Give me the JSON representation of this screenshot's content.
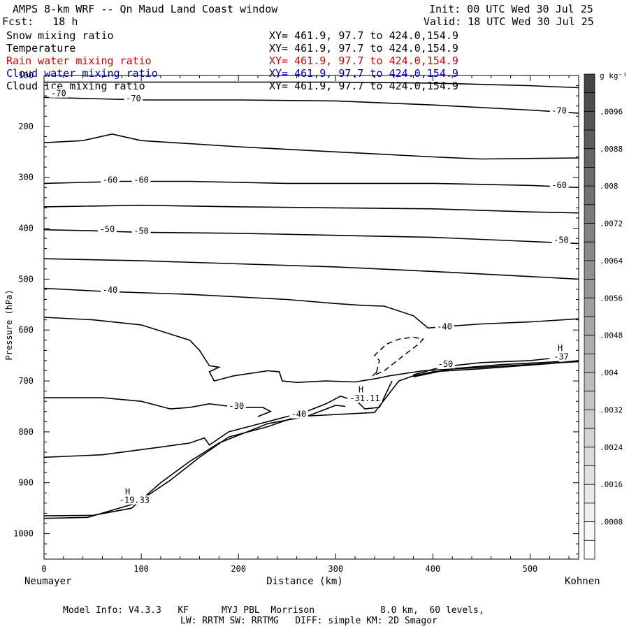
{
  "header": {
    "title": "AMPS 8-km WRF -- Qn Maud Land Coast window",
    "fcst": "Fcst:   18 h",
    "init": "Init: 00 UTC Wed 30 Jul 25",
    "valid": "Valid: 18 UTC Wed 30 Jul 25"
  },
  "fields": [
    {
      "name": "Snow mixing ratio",
      "xy": "XY= 461.9, 97.7 to 424.0,154.9",
      "color": "#000000"
    },
    {
      "name": "Temperature",
      "xy": "XY= 461.9, 97.7 to 424.0,154.9",
      "color": "#000000"
    },
    {
      "name": "Rain water mixing ratio",
      "xy": "XY= 461.9, 97.7 to 424.0,154.9",
      "color": "#e00000"
    },
    {
      "name": "Cloud water mixing ratio",
      "xy": "XY= 461.9, 97.7 to 424.0,154.9",
      "color": "#0000c8"
    },
    {
      "name": "Cloud ice mixing ratio",
      "xy": "XY= 461.9, 97.7 to 424.0,154.9",
      "color": "#000000"
    }
  ],
  "footer": {
    "line1": "Model Info: V4.3.3   KF      MYJ PBL  Morrison            8.0 km,  60 levels,",
    "line2": "LW: RRTM SW: RRTMG   DIFF: simple KM: 2D Smagor"
  },
  "chart_data": {
    "type": "line",
    "xlabel": "Distance (km)",
    "ylabel": "Pressure (hPa)",
    "xlim": [
      0,
      550
    ],
    "ylim": [
      1050,
      100
    ],
    "x_ticks": [
      0,
      100,
      200,
      300,
      400,
      500
    ],
    "y_ticks": [
      100,
      200,
      300,
      400,
      500,
      600,
      700,
      800,
      900,
      1000
    ],
    "left_endpoint_label": "Neumayer",
    "right_endpoint_label": "Kohnen",
    "colorbar": {
      "unit": "g kg⁻¹",
      "ticks": [
        ".0096",
        ".0088",
        ".008",
        ".0072",
        ".0064",
        ".0056",
        ".0048",
        ".004",
        ".0032",
        ".0024",
        ".0016",
        ".0008"
      ]
    },
    "contour_labels": [
      {
        "text": "-70",
        "x": 15,
        "p": 138
      },
      {
        "text": "-70",
        "x": 92,
        "p": 148
      },
      {
        "text": "-70",
        "x": 530,
        "p": 172
      },
      {
        "text": "-60",
        "x": 68,
        "p": 308
      },
      {
        "text": "-60",
        "x": 100,
        "p": 308
      },
      {
        "text": "-60",
        "x": 530,
        "p": 318
      },
      {
        "text": "-50",
        "x": 65,
        "p": 405
      },
      {
        "text": "-50",
        "x": 100,
        "p": 408
      },
      {
        "text": "-50",
        "x": 532,
        "p": 426
      },
      {
        "text": "-40",
        "x": 68,
        "p": 524
      },
      {
        "text": "-40",
        "x": 412,
        "p": 596
      },
      {
        "text": "-40",
        "x": 262,
        "p": 768
      },
      {
        "text": "-30",
        "x": 198,
        "p": 752
      },
      {
        "text": "-50",
        "x": 413,
        "p": 670
      },
      {
        "text": "H",
        "x": 86,
        "p": 920
      },
      {
        "text": "-19.33",
        "x": 93,
        "p": 937
      },
      {
        "text": "H",
        "x": 326,
        "p": 720
      },
      {
        "text": "-31.11",
        "x": 330,
        "p": 737
      },
      {
        "text": "H",
        "x": 531,
        "p": 638
      },
      {
        "text": "-37",
        "x": 532,
        "p": 655
      }
    ],
    "isotherms": [
      {
        "label": "-70",
        "points": [
          [
            0,
            113
          ],
          [
            100,
            113
          ],
          [
            200,
            113
          ],
          [
            300,
            113
          ],
          [
            400,
            115
          ],
          [
            500,
            120
          ],
          [
            550,
            124
          ]
        ]
      },
      {
        "label": "-70",
        "points": [
          [
            0,
            143
          ],
          [
            100,
            148
          ],
          [
            200,
            148
          ],
          [
            300,
            150
          ],
          [
            400,
            158
          ],
          [
            500,
            168
          ],
          [
            550,
            174
          ]
        ]
      },
      {
        "label": "",
        "points": [
          [
            0,
            232
          ],
          [
            40,
            228
          ],
          [
            70,
            215
          ],
          [
            100,
            228
          ],
          [
            200,
            240
          ],
          [
            300,
            250
          ],
          [
            400,
            260
          ],
          [
            450,
            264
          ],
          [
            550,
            262
          ]
        ]
      },
      {
        "label": "-60",
        "points": [
          [
            0,
            312
          ],
          [
            40,
            310
          ],
          [
            80,
            308
          ],
          [
            150,
            308
          ],
          [
            250,
            312
          ],
          [
            400,
            312
          ],
          [
            500,
            316
          ],
          [
            550,
            320
          ]
        ]
      },
      {
        "label": "",
        "points": [
          [
            0,
            358
          ],
          [
            100,
            355
          ],
          [
            200,
            358
          ],
          [
            300,
            360
          ],
          [
            400,
            362
          ],
          [
            500,
            368
          ],
          [
            550,
            370
          ]
        ]
      },
      {
        "label": "-50",
        "points": [
          [
            0,
            403
          ],
          [
            50,
            405
          ],
          [
            100,
            408
          ],
          [
            200,
            410
          ],
          [
            300,
            414
          ],
          [
            400,
            418
          ],
          [
            500,
            426
          ],
          [
            550,
            430
          ]
        ]
      },
      {
        "label": "",
        "points": [
          [
            0,
            460
          ],
          [
            100,
            464
          ],
          [
            200,
            470
          ],
          [
            300,
            476
          ],
          [
            400,
            485
          ],
          [
            500,
            495
          ],
          [
            550,
            500
          ]
        ]
      },
      {
        "label": "-40",
        "points": [
          [
            0,
            518
          ],
          [
            60,
            524
          ],
          [
            150,
            530
          ],
          [
            250,
            540
          ],
          [
            300,
            548
          ],
          [
            330,
            552
          ],
          [
            350,
            553
          ],
          [
            380,
            572
          ],
          [
            395,
            596
          ],
          [
            420,
            592
          ],
          [
            450,
            588
          ],
          [
            500,
            584
          ],
          [
            550,
            578
          ]
        ]
      },
      {
        "label": "",
        "points": [
          [
            0,
            575
          ],
          [
            50,
            580
          ],
          [
            100,
            590
          ],
          [
            150,
            620
          ],
          [
            160,
            640
          ],
          [
            170,
            670
          ],
          [
            180,
            673
          ],
          [
            170,
            682
          ],
          [
            175,
            700
          ],
          [
            195,
            690
          ],
          [
            230,
            680
          ],
          [
            242,
            682
          ],
          [
            245,
            700
          ],
          [
            260,
            703
          ],
          [
            290,
            700
          ],
          [
            320,
            702
          ],
          [
            340,
            696
          ],
          [
            355,
            690
          ],
          [
            390,
            680
          ],
          [
            550,
            662
          ]
        ]
      },
      {
        "label": "-30",
        "points": [
          [
            0,
            733
          ],
          [
            60,
            733
          ],
          [
            100,
            740
          ],
          [
            130,
            755
          ],
          [
            150,
            752
          ],
          [
            170,
            745
          ],
          [
            200,
            752
          ],
          [
            225,
            752
          ],
          [
            233,
            760
          ],
          [
            220,
            770
          ]
        ]
      },
      {
        "label": "",
        "points": [
          [
            0,
            850
          ],
          [
            60,
            845
          ],
          [
            120,
            830
          ],
          [
            150,
            822
          ],
          [
            165,
            812
          ],
          [
            170,
            826
          ],
          [
            190,
            800
          ],
          [
            230,
            780
          ],
          [
            270,
            760
          ],
          [
            290,
            745
          ],
          [
            305,
            730
          ],
          [
            322,
            740
          ],
          [
            330,
            755
          ],
          [
            345,
            752
          ],
          [
            358,
            700
          ]
        ]
      },
      {
        "label": "",
        "points": [
          [
            0,
            965
          ],
          [
            50,
            964
          ],
          [
            90,
            950
          ],
          [
            120,
            900
          ],
          [
            150,
            858
          ],
          [
            180,
            822
          ],
          [
            230,
            784
          ],
          [
            270,
            770
          ],
          [
            300,
            748
          ],
          [
            310,
            750
          ]
        ]
      },
      {
        "label": "",
        "points": [
          [
            0,
            970
          ],
          [
            45,
            968
          ],
          [
            95,
            940
          ],
          [
            130,
            895
          ],
          [
            160,
            850
          ],
          [
            190,
            810
          ],
          [
            230,
            790
          ],
          [
            260,
            770
          ],
          [
            320,
            764
          ],
          [
            340,
            762
          ],
          [
            365,
            700
          ],
          [
            380,
            690
          ],
          [
            400,
            682
          ],
          [
            450,
            676
          ],
          [
            520,
            666
          ],
          [
            550,
            660
          ]
        ]
      },
      {
        "label": "-50",
        "points": [
          [
            380,
            688
          ],
          [
            410,
            672
          ],
          [
            450,
            664
          ],
          [
            500,
            660
          ],
          [
            520,
            656
          ]
        ]
      },
      {
        "label": "",
        "points": [
          [
            380,
            692
          ],
          [
            420,
            676
          ],
          [
            470,
            668
          ],
          [
            530,
            662
          ]
        ]
      }
    ],
    "dashed_contour": [
      [
        342,
        683
      ],
      [
        338,
        690
      ],
      [
        350,
        680
      ],
      [
        370,
        650
      ],
      [
        385,
        628
      ],
      [
        390,
        618
      ],
      [
        380,
        614
      ],
      [
        365,
        618
      ],
      [
        352,
        628
      ],
      [
        340,
        650
      ],
      [
        345,
        660
      ],
      [
        342,
        683
      ]
    ]
  }
}
